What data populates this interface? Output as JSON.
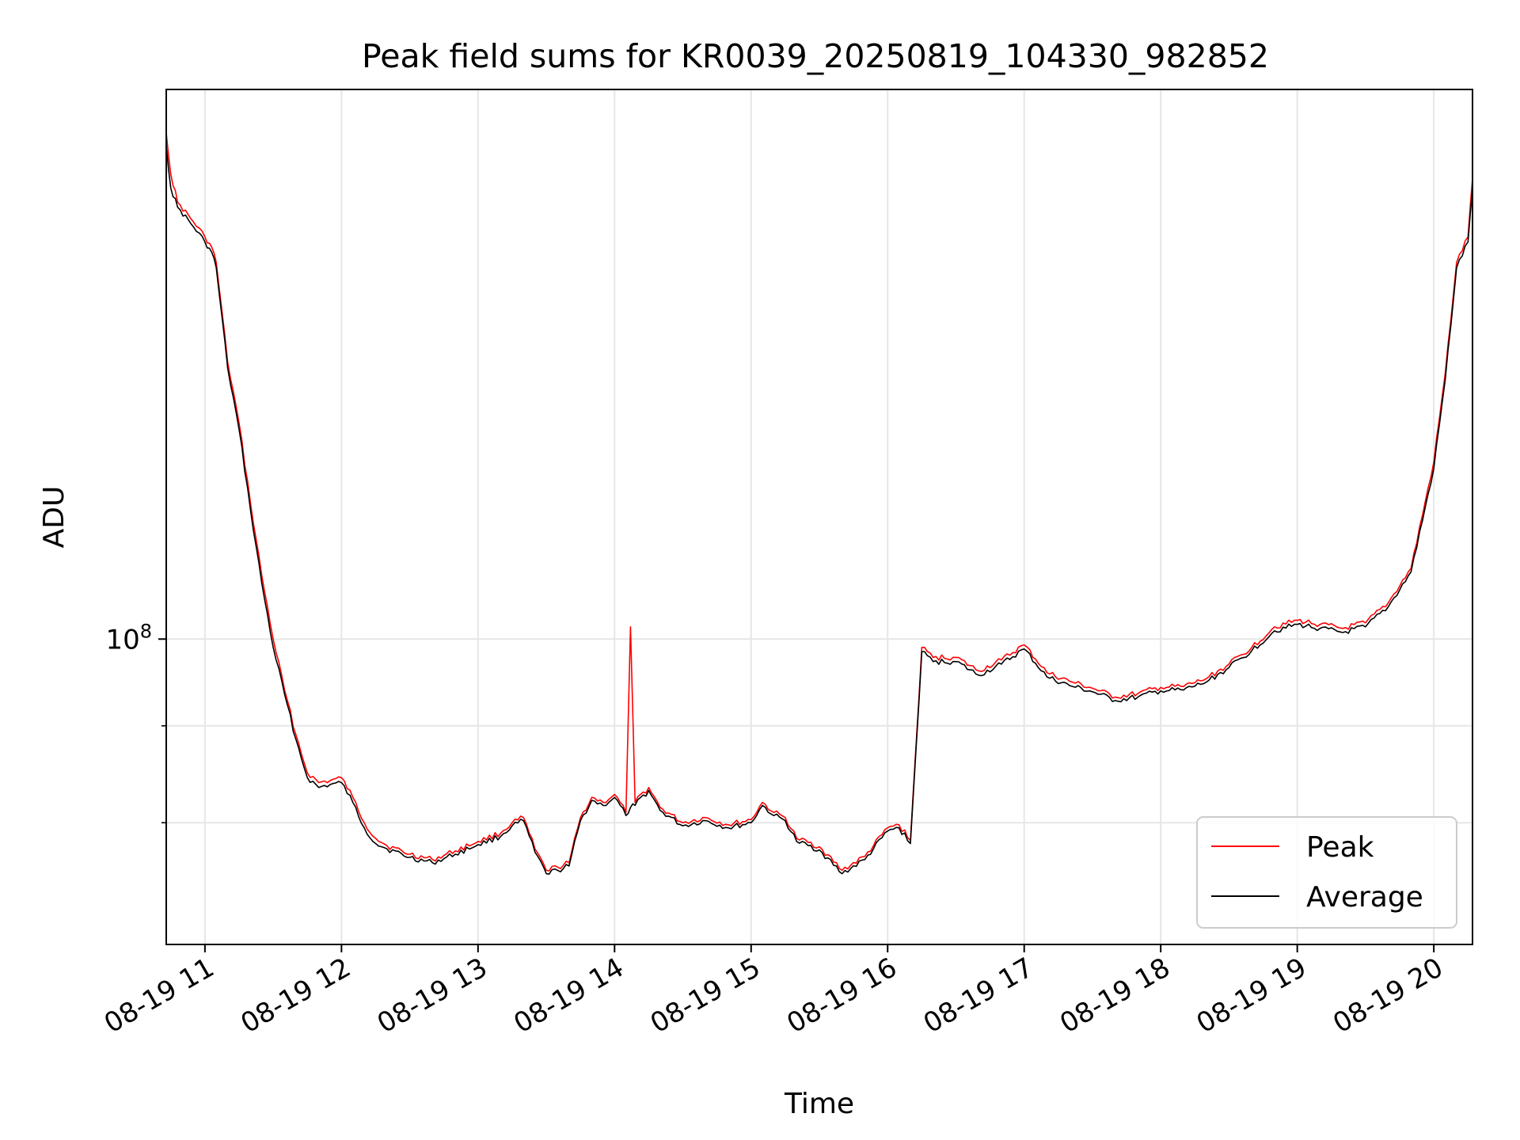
{
  "chart_data": {
    "type": "line",
    "title": "Peak field sums for KR0039_20250819_104330_982852",
    "xlabel": "Time",
    "ylabel": "ADU",
    "y_scale": "log",
    "x_range": [
      "2025-08-19 10:43",
      "2025-08-19 20:17"
    ],
    "y_range_approx": [
      69000000,
      195000000
    ],
    "x_ticks": [
      {
        "time": "2025-08-19 11:00",
        "label": "08-19 11"
      },
      {
        "time": "2025-08-19 12:00",
        "label": "08-19 12"
      },
      {
        "time": "2025-08-19 13:00",
        "label": "08-19 13"
      },
      {
        "time": "2025-08-19 14:00",
        "label": "08-19 14"
      },
      {
        "time": "2025-08-19 15:00",
        "label": "08-19 15"
      },
      {
        "time": "2025-08-19 16:00",
        "label": "08-19 16"
      },
      {
        "time": "2025-08-19 17:00",
        "label": "08-19 17"
      },
      {
        "time": "2025-08-19 18:00",
        "label": "08-19 18"
      },
      {
        "time": "2025-08-19 19:00",
        "label": "08-19 19"
      },
      {
        "time": "2025-08-19 20:00",
        "label": "08-19 20"
      }
    ],
    "y_ticks_major": [
      {
        "value": 100000000,
        "base": "10",
        "exp": "8"
      }
    ],
    "y_ticks_minor": [
      80000000,
      90000000
    ],
    "grid": true,
    "legend_position": "lower-right",
    "series": [
      {
        "name": "Peak",
        "color": "#ff0000",
        "points": [
          [
            "10:43",
            185000000
          ],
          [
            "10:45",
            176000000
          ],
          [
            "10:48",
            170000000
          ],
          [
            "10:55",
            166000000
          ],
          [
            "11:00",
            163000000
          ],
          [
            "11:03",
            161000000
          ],
          [
            "11:05",
            158000000
          ],
          [
            "11:10",
            140000000
          ],
          [
            "11:15",
            130000000
          ],
          [
            "11:20",
            118000000
          ],
          [
            "11:25",
            108000000
          ],
          [
            "11:30",
            100000000
          ],
          [
            "11:35",
            94000000
          ],
          [
            "11:40",
            89000000
          ],
          [
            "11:45",
            85000000
          ],
          [
            "11:50",
            84000000
          ],
          [
            "11:55",
            84200000
          ],
          [
            "12:00",
            84500000
          ],
          [
            "12:05",
            82500000
          ],
          [
            "12:10",
            80000000
          ],
          [
            "12:15",
            78500000
          ],
          [
            "12:20",
            77800000
          ],
          [
            "12:30",
            77000000
          ],
          [
            "12:40",
            76500000
          ],
          [
            "12:50",
            77300000
          ],
          [
            "13:00",
            78200000
          ],
          [
            "13:10",
            79000000
          ],
          [
            "13:15",
            80000000
          ],
          [
            "13:20",
            80500000
          ],
          [
            "13:25",
            77500000
          ],
          [
            "13:30",
            75500000
          ],
          [
            "13:35",
            75800000
          ],
          [
            "13:40",
            76200000
          ],
          [
            "13:45",
            80500000
          ],
          [
            "13:50",
            82500000
          ],
          [
            "13:55",
            82000000
          ],
          [
            "14:00",
            82800000
          ],
          [
            "14:05",
            81000000
          ],
          [
            "14:07",
            101500000
          ],
          [
            "14:09",
            82000000
          ],
          [
            "14:15",
            83500000
          ],
          [
            "14:20",
            81500000
          ],
          [
            "14:30",
            80000000
          ],
          [
            "14:40",
            80500000
          ],
          [
            "14:50",
            79800000
          ],
          [
            "15:00",
            80300000
          ],
          [
            "15:05",
            82000000
          ],
          [
            "15:10",
            81000000
          ],
          [
            "15:15",
            80500000
          ],
          [
            "15:20",
            78500000
          ],
          [
            "15:30",
            77700000
          ],
          [
            "15:40",
            75500000
          ],
          [
            "15:50",
            76800000
          ],
          [
            "16:00",
            79500000
          ],
          [
            "16:05",
            79800000
          ],
          [
            "16:10",
            78300000
          ],
          [
            "16:15",
            99000000
          ],
          [
            "16:20",
            97800000
          ],
          [
            "16:30",
            97800000
          ],
          [
            "16:40",
            96200000
          ],
          [
            "16:50",
            97500000
          ],
          [
            "17:00",
            99300000
          ],
          [
            "17:10",
            96000000
          ],
          [
            "17:20",
            95000000
          ],
          [
            "17:30",
            94200000
          ],
          [
            "17:40",
            93200000
          ],
          [
            "17:50",
            93600000
          ],
          [
            "18:00",
            94300000
          ],
          [
            "18:10",
            94400000
          ],
          [
            "18:20",
            95300000
          ],
          [
            "18:30",
            97000000
          ],
          [
            "18:40",
            99000000
          ],
          [
            "18:50",
            101500000
          ],
          [
            "19:00",
            102300000
          ],
          [
            "19:10",
            101800000
          ],
          [
            "19:20",
            101300000
          ],
          [
            "19:30",
            102000000
          ],
          [
            "19:40",
            104500000
          ],
          [
            "19:50",
            109000000
          ],
          [
            "20:00",
            124000000
          ],
          [
            "20:05",
            138000000
          ],
          [
            "20:10",
            158000000
          ],
          [
            "20:15",
            163000000
          ],
          [
            "20:17",
            175000000
          ]
        ]
      },
      {
        "name": "Average",
        "color": "#000000",
        "points": [
          [
            "10:43",
            182000000
          ],
          [
            "10:45",
            173000000
          ],
          [
            "10:48",
            169000000
          ],
          [
            "10:55",
            165000000
          ],
          [
            "11:00",
            162000000
          ],
          [
            "11:03",
            160000000
          ],
          [
            "11:05",
            157000000
          ],
          [
            "11:10",
            139000000
          ],
          [
            "11:15",
            129000000
          ],
          [
            "11:20",
            117000000
          ],
          [
            "11:25",
            107000000
          ],
          [
            "11:30",
            99000000
          ],
          [
            "11:35",
            93500000
          ],
          [
            "11:40",
            88500000
          ],
          [
            "11:45",
            84500000
          ],
          [
            "11:50",
            83500000
          ],
          [
            "11:55",
            83800000
          ],
          [
            "12:00",
            84000000
          ],
          [
            "12:05",
            82000000
          ],
          [
            "12:10",
            79500000
          ],
          [
            "12:15",
            78000000
          ],
          [
            "12:20",
            77500000
          ],
          [
            "12:30",
            76700000
          ],
          [
            "12:40",
            76200000
          ],
          [
            "12:50",
            77000000
          ],
          [
            "13:00",
            77900000
          ],
          [
            "13:10",
            78700000
          ],
          [
            "13:15",
            79700000
          ],
          [
            "13:20",
            80200000
          ],
          [
            "13:25",
            77200000
          ],
          [
            "13:30",
            75200000
          ],
          [
            "13:35",
            75500000
          ],
          [
            "13:40",
            75900000
          ],
          [
            "13:45",
            80200000
          ],
          [
            "13:50",
            82200000
          ],
          [
            "13:55",
            81700000
          ],
          [
            "14:00",
            82500000
          ],
          [
            "14:05",
            80700000
          ],
          [
            "14:07",
            81500000
          ],
          [
            "14:09",
            81700000
          ],
          [
            "14:15",
            83200000
          ],
          [
            "14:20",
            81200000
          ],
          [
            "14:30",
            79700000
          ],
          [
            "14:40",
            80200000
          ],
          [
            "14:50",
            79500000
          ],
          [
            "15:00",
            80000000
          ],
          [
            "15:05",
            81700000
          ],
          [
            "15:10",
            80700000
          ],
          [
            "15:15",
            80200000
          ],
          [
            "15:20",
            78200000
          ],
          [
            "15:30",
            77400000
          ],
          [
            "15:40",
            75200000
          ],
          [
            "15:50",
            76500000
          ],
          [
            "16:00",
            79200000
          ],
          [
            "16:05",
            79500000
          ],
          [
            "16:10",
            78000000
          ],
          [
            "16:15",
            98500000
          ],
          [
            "16:20",
            97300000
          ],
          [
            "16:30",
            97300000
          ],
          [
            "16:40",
            95700000
          ],
          [
            "16:50",
            97000000
          ],
          [
            "17:00",
            98800000
          ],
          [
            "17:10",
            95500000
          ],
          [
            "17:20",
            94500000
          ],
          [
            "17:30",
            93800000
          ],
          [
            "17:40",
            92800000
          ],
          [
            "17:50",
            93200000
          ],
          [
            "18:00",
            93900000
          ],
          [
            "18:10",
            94000000
          ],
          [
            "18:20",
            94900000
          ],
          [
            "18:30",
            96600000
          ],
          [
            "18:40",
            98600000
          ],
          [
            "18:50",
            101000000
          ],
          [
            "19:00",
            101800000
          ],
          [
            "19:10",
            101300000
          ],
          [
            "19:20",
            100800000
          ],
          [
            "19:30",
            101500000
          ],
          [
            "19:40",
            104000000
          ],
          [
            "19:50",
            108500000
          ],
          [
            "20:00",
            123000000
          ],
          [
            "20:05",
            137000000
          ],
          [
            "20:10",
            157000000
          ],
          [
            "20:15",
            162000000
          ],
          [
            "20:17",
            173000000
          ]
        ]
      }
    ]
  }
}
